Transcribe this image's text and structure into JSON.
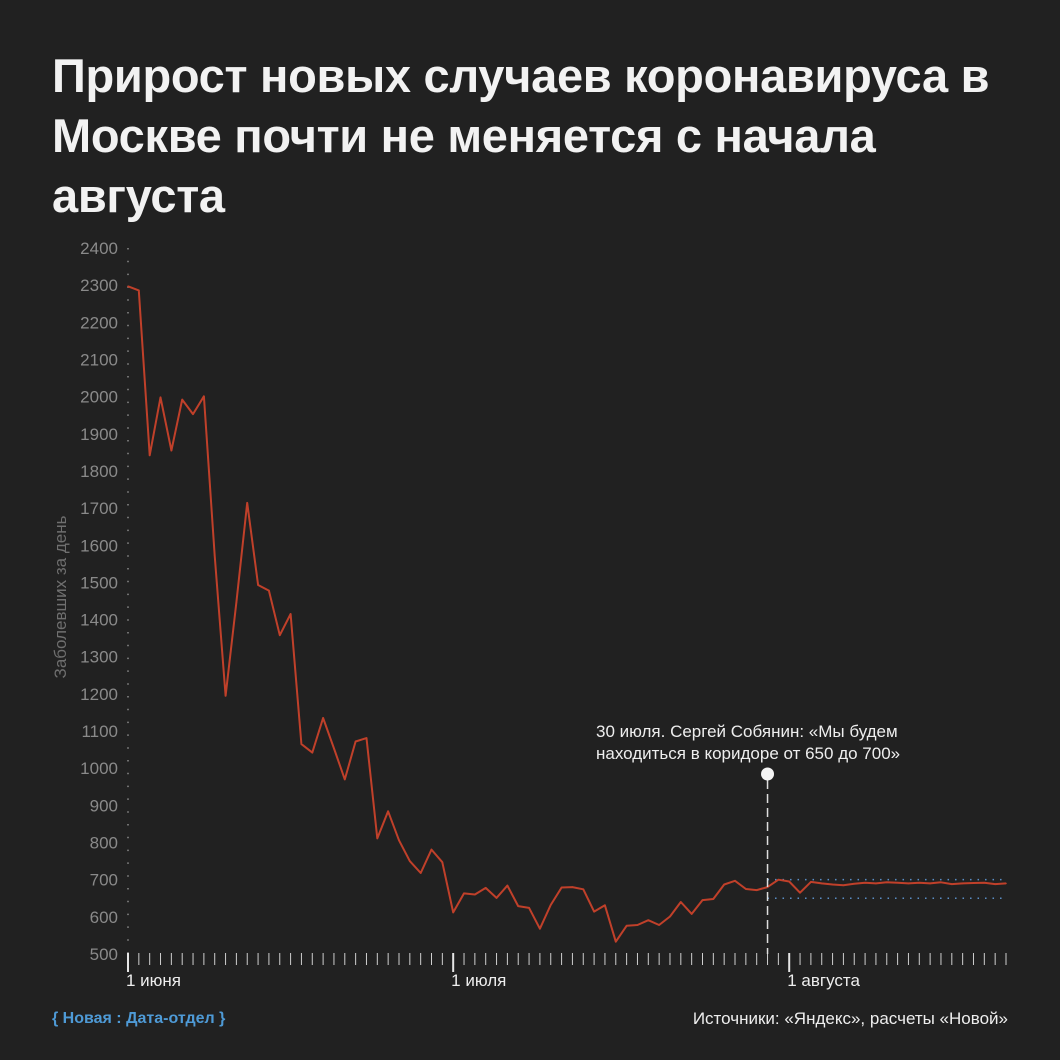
{
  "title": "Прирост новых случаев коронавируса в Москве почти не меняется с начала августа",
  "brand": "{ Новая : Дата-отдел }",
  "source": "Источники: «Яндекс», расчеты «Новой»",
  "colors": {
    "background": "#212121",
    "line": "#c0402a",
    "corridor": "#5b8fc7",
    "axis_text": "#8a8a8a",
    "text": "#eeeeee",
    "brand": "#4e9ad6"
  },
  "chart_data": {
    "type": "line",
    "ylabel": "Заболевших за день",
    "ylim": [
      500,
      2400
    ],
    "yticks": [
      500,
      600,
      700,
      800,
      900,
      1000,
      1100,
      1200,
      1300,
      1400,
      1500,
      1600,
      1700,
      1800,
      1900,
      2000,
      2100,
      2200,
      2300,
      2400
    ],
    "xrange": [
      "2020-06-01",
      "2020-08-21"
    ],
    "xtick_labels": [
      {
        "date": "2020-06-01",
        "label": "1 июня"
      },
      {
        "date": "2020-07-01",
        "label": "1 июля"
      },
      {
        "date": "2020-08-01",
        "label": "1 августа"
      }
    ],
    "series": [
      {
        "x": [
          "2020-06-01",
          "2020-06-02",
          "2020-06-03",
          "2020-06-04",
          "2020-06-05",
          "2020-06-06",
          "2020-06-07",
          "2020-06-08",
          "2020-06-09",
          "2020-06-10",
          "2020-06-11",
          "2020-06-12",
          "2020-06-13",
          "2020-06-14",
          "2020-06-15",
          "2020-06-16",
          "2020-06-17",
          "2020-06-18",
          "2020-06-19",
          "2020-06-20",
          "2020-06-21",
          "2020-06-22",
          "2020-06-23",
          "2020-06-24",
          "2020-06-25",
          "2020-06-26",
          "2020-06-27",
          "2020-06-28",
          "2020-06-29",
          "2020-06-30",
          "2020-07-01",
          "2020-07-02",
          "2020-07-03",
          "2020-07-04",
          "2020-07-05",
          "2020-07-06",
          "2020-07-07",
          "2020-07-08",
          "2020-07-09",
          "2020-07-10",
          "2020-07-11",
          "2020-07-12",
          "2020-07-13",
          "2020-07-14",
          "2020-07-15",
          "2020-07-16",
          "2020-07-17",
          "2020-07-18",
          "2020-07-19",
          "2020-07-20",
          "2020-07-21",
          "2020-07-22",
          "2020-07-23",
          "2020-07-24",
          "2020-07-25",
          "2020-07-26",
          "2020-07-27",
          "2020-07-28",
          "2020-07-29",
          "2020-07-30",
          "2020-07-31",
          "2020-08-01",
          "2020-08-02",
          "2020-08-03",
          "2020-08-04",
          "2020-08-05",
          "2020-08-06",
          "2020-08-07",
          "2020-08-08",
          "2020-08-09",
          "2020-08-10",
          "2020-08-11",
          "2020-08-12",
          "2020-08-13",
          "2020-08-14",
          "2020-08-15",
          "2020-08-16",
          "2020-08-17",
          "2020-08-18",
          "2020-08-19",
          "2020-08-20",
          "2020-08-21"
        ],
        "values": [
          2297,
          2286,
          1842,
          1998,
          1855,
          1992,
          1953,
          2001,
          1572,
          1195,
          1447,
          1714,
          1493,
          1478,
          1358,
          1415,
          1065,
          1042,
          1135,
          1053,
          970,
          1072,
          1081,
          811,
          884,
          806,
          750,
          718,
          781,
          747,
          612,
          663,
          660,
          678,
          651,
          684,
          629,
          624,
          568,
          632,
          679,
          680,
          674,
          614,
          631,
          533,
          576,
          578,
          591,
          578,
          601,
          640,
          608,
          645,
          648,
          687,
          697,
          675,
          672,
          680,
          700,
          695,
          665,
          694,
          690,
          687,
          685,
          689,
          692,
          690,
          693,
          692,
          690,
          692,
          690,
          693,
          688,
          690,
          691,
          692,
          688,
          690
        ]
      }
    ],
    "corridor": [
      650,
      700
    ],
    "annotation": {
      "date": "2020-07-30",
      "lines": [
        "30 июля. Сергей Собянин: «Мы будем",
        "находиться в коридоре от 650 до 700»"
      ]
    }
  }
}
